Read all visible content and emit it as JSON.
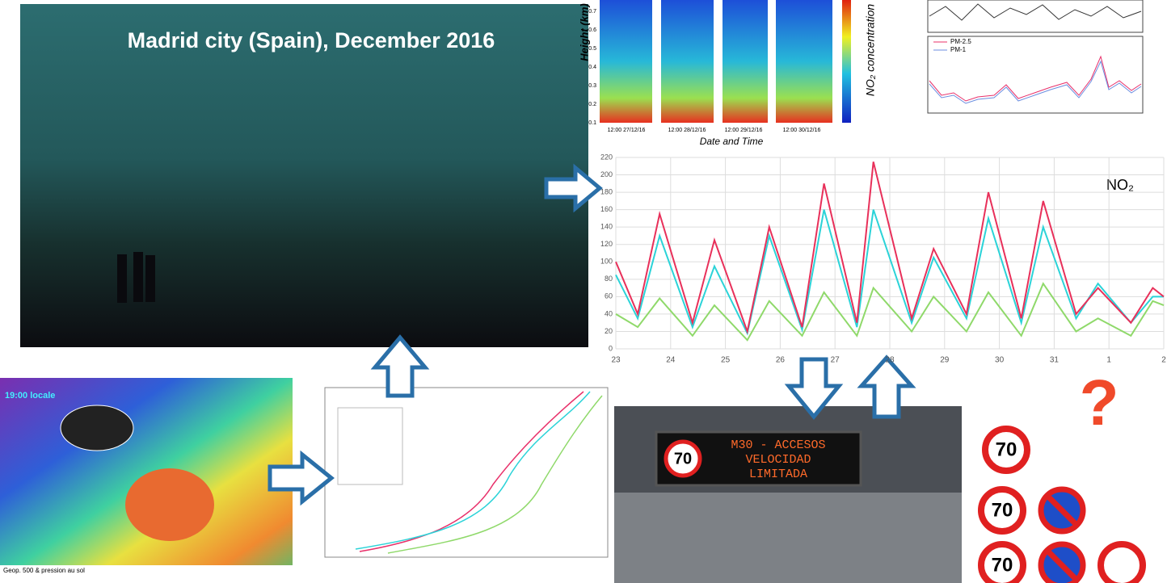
{
  "photo": {
    "title": "Madrid city (Spain), December 2016"
  },
  "heatmap": {
    "y_label": "Height (km)",
    "x_label": "Date and Time",
    "colorbar_label": "NO₂ concentration",
    "yticks": [
      "0.7",
      "0.6",
      "0.5",
      "0.4",
      "0.3",
      "0.2",
      "0.1"
    ],
    "xticks": [
      "12:00 27/12/16",
      "12:00 28/12/16",
      "12:00 29/12/16",
      "12:00 30/12/16"
    ]
  },
  "pm_chart": {
    "legend": [
      "PM-2.5",
      "PM-1"
    ]
  },
  "weather_map": {
    "time_label": "19:00 locale",
    "footer": "Geop. 500 & pression au sol"
  },
  "no2_chart": {
    "type": "line",
    "label": "NO₂",
    "x": [
      23,
      23.4,
      23.8,
      24.4,
      24.8,
      25.4,
      25.8,
      26.4,
      26.8,
      27.4,
      27.7,
      28.4,
      28.8,
      29.4,
      29.8,
      30.4,
      30.8,
      31.4,
      31.8,
      32.4,
      32.8,
      33
    ],
    "series": [
      {
        "color": "#2bd3d8",
        "values": [
          85,
          35,
          130,
          25,
          95,
          18,
          130,
          22,
          160,
          25,
          160,
          30,
          105,
          35,
          150,
          30,
          140,
          35,
          75,
          30,
          60,
          60
        ]
      },
      {
        "color": "#8fd96a",
        "values": [
          40,
          25,
          58,
          15,
          50,
          10,
          55,
          15,
          65,
          15,
          70,
          20,
          60,
          20,
          65,
          15,
          75,
          20,
          35,
          15,
          55,
          50
        ]
      },
      {
        "color": "#e8305a",
        "values": [
          100,
          40,
          155,
          30,
          125,
          20,
          140,
          25,
          190,
          30,
          215,
          35,
          115,
          40,
          180,
          35,
          170,
          40,
          70,
          30,
          70,
          60
        ]
      }
    ],
    "xlim": [
      23,
      33
    ],
    "ylim": [
      0,
      220
    ],
    "yticks": [
      0,
      20,
      40,
      60,
      80,
      100,
      120,
      140,
      160,
      180,
      200,
      220
    ],
    "xticks": [
      23,
      24,
      25,
      26,
      27,
      28,
      29,
      30,
      31,
      {
        "value": 32,
        "label": "1"
      },
      {
        "value": 33,
        "label": "2"
      }
    ],
    "grid": true
  },
  "traffic_sign": {
    "speed": "70",
    "lines": [
      "M30 - ACCESOS",
      "VELOCIDAD",
      "LIMITADA"
    ]
  },
  "road_signs": {
    "speed": "70",
    "question": "?"
  }
}
